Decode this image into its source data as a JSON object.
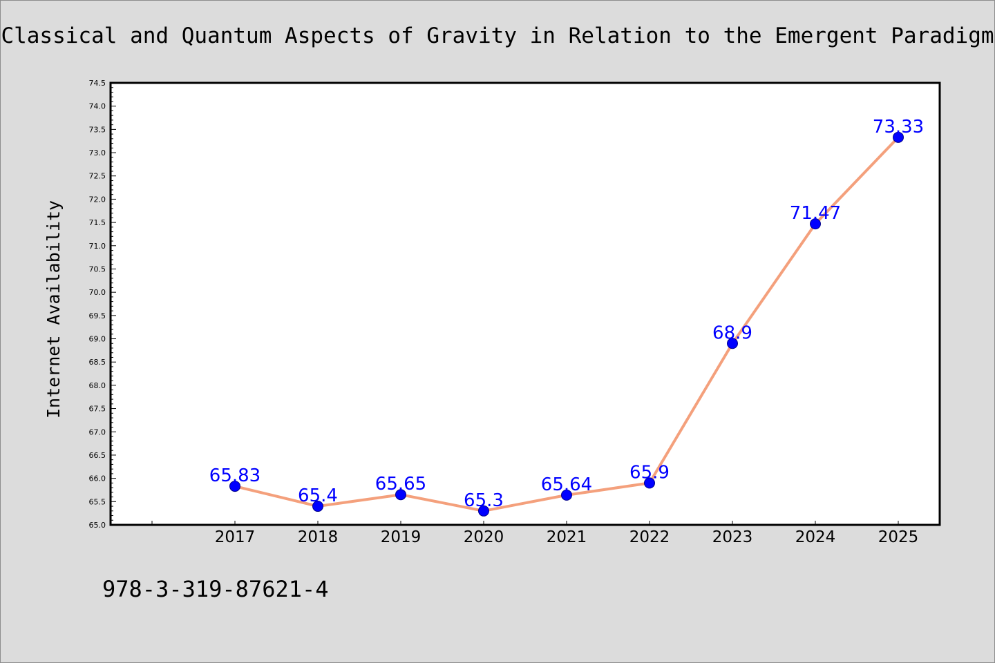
{
  "title": "Classical and Quantum Aspects of Gravity in Relation to the Emergent Paradigm",
  "footer_code": "978-3-319-87621-4",
  "colors": {
    "background": "#dcdcdc",
    "plot_background": "#ffffff",
    "line": "#f4a07c",
    "marker": "#0000ff",
    "label": "#0000ff"
  },
  "chart_data": {
    "type": "line",
    "title": "Classical and Quantum Aspects of Gravity in Relation to the Emergent Paradigm",
    "xlabel": "",
    "ylabel": "Internet Availability",
    "categories": [
      "2017",
      "2018",
      "2019",
      "2020",
      "2021",
      "2022",
      "2023",
      "2024",
      "2025"
    ],
    "series": [
      {
        "values": [
          65.83,
          65.4,
          65.65,
          65.3,
          65.64,
          65.9,
          68.9,
          71.47,
          73.33
        ],
        "labels": [
          "65.83",
          "65.4",
          "65.65",
          "65.3",
          "65.64",
          "65.9",
          "68.9",
          "71.47",
          "73.33"
        ]
      }
    ],
    "ylim": [
      65.0,
      74.5
    ],
    "yticks": [
      "65.0",
      "65.5",
      "66.0",
      "66.5",
      "67.0",
      "67.5",
      "68.0",
      "68.5",
      "69.0",
      "69.5",
      "70.0",
      "70.5",
      "71.0",
      "71.5",
      "72.0",
      "72.5",
      "73.0",
      "73.5",
      "74.0",
      "74.5"
    ],
    "grid": false,
    "legend": "none"
  }
}
